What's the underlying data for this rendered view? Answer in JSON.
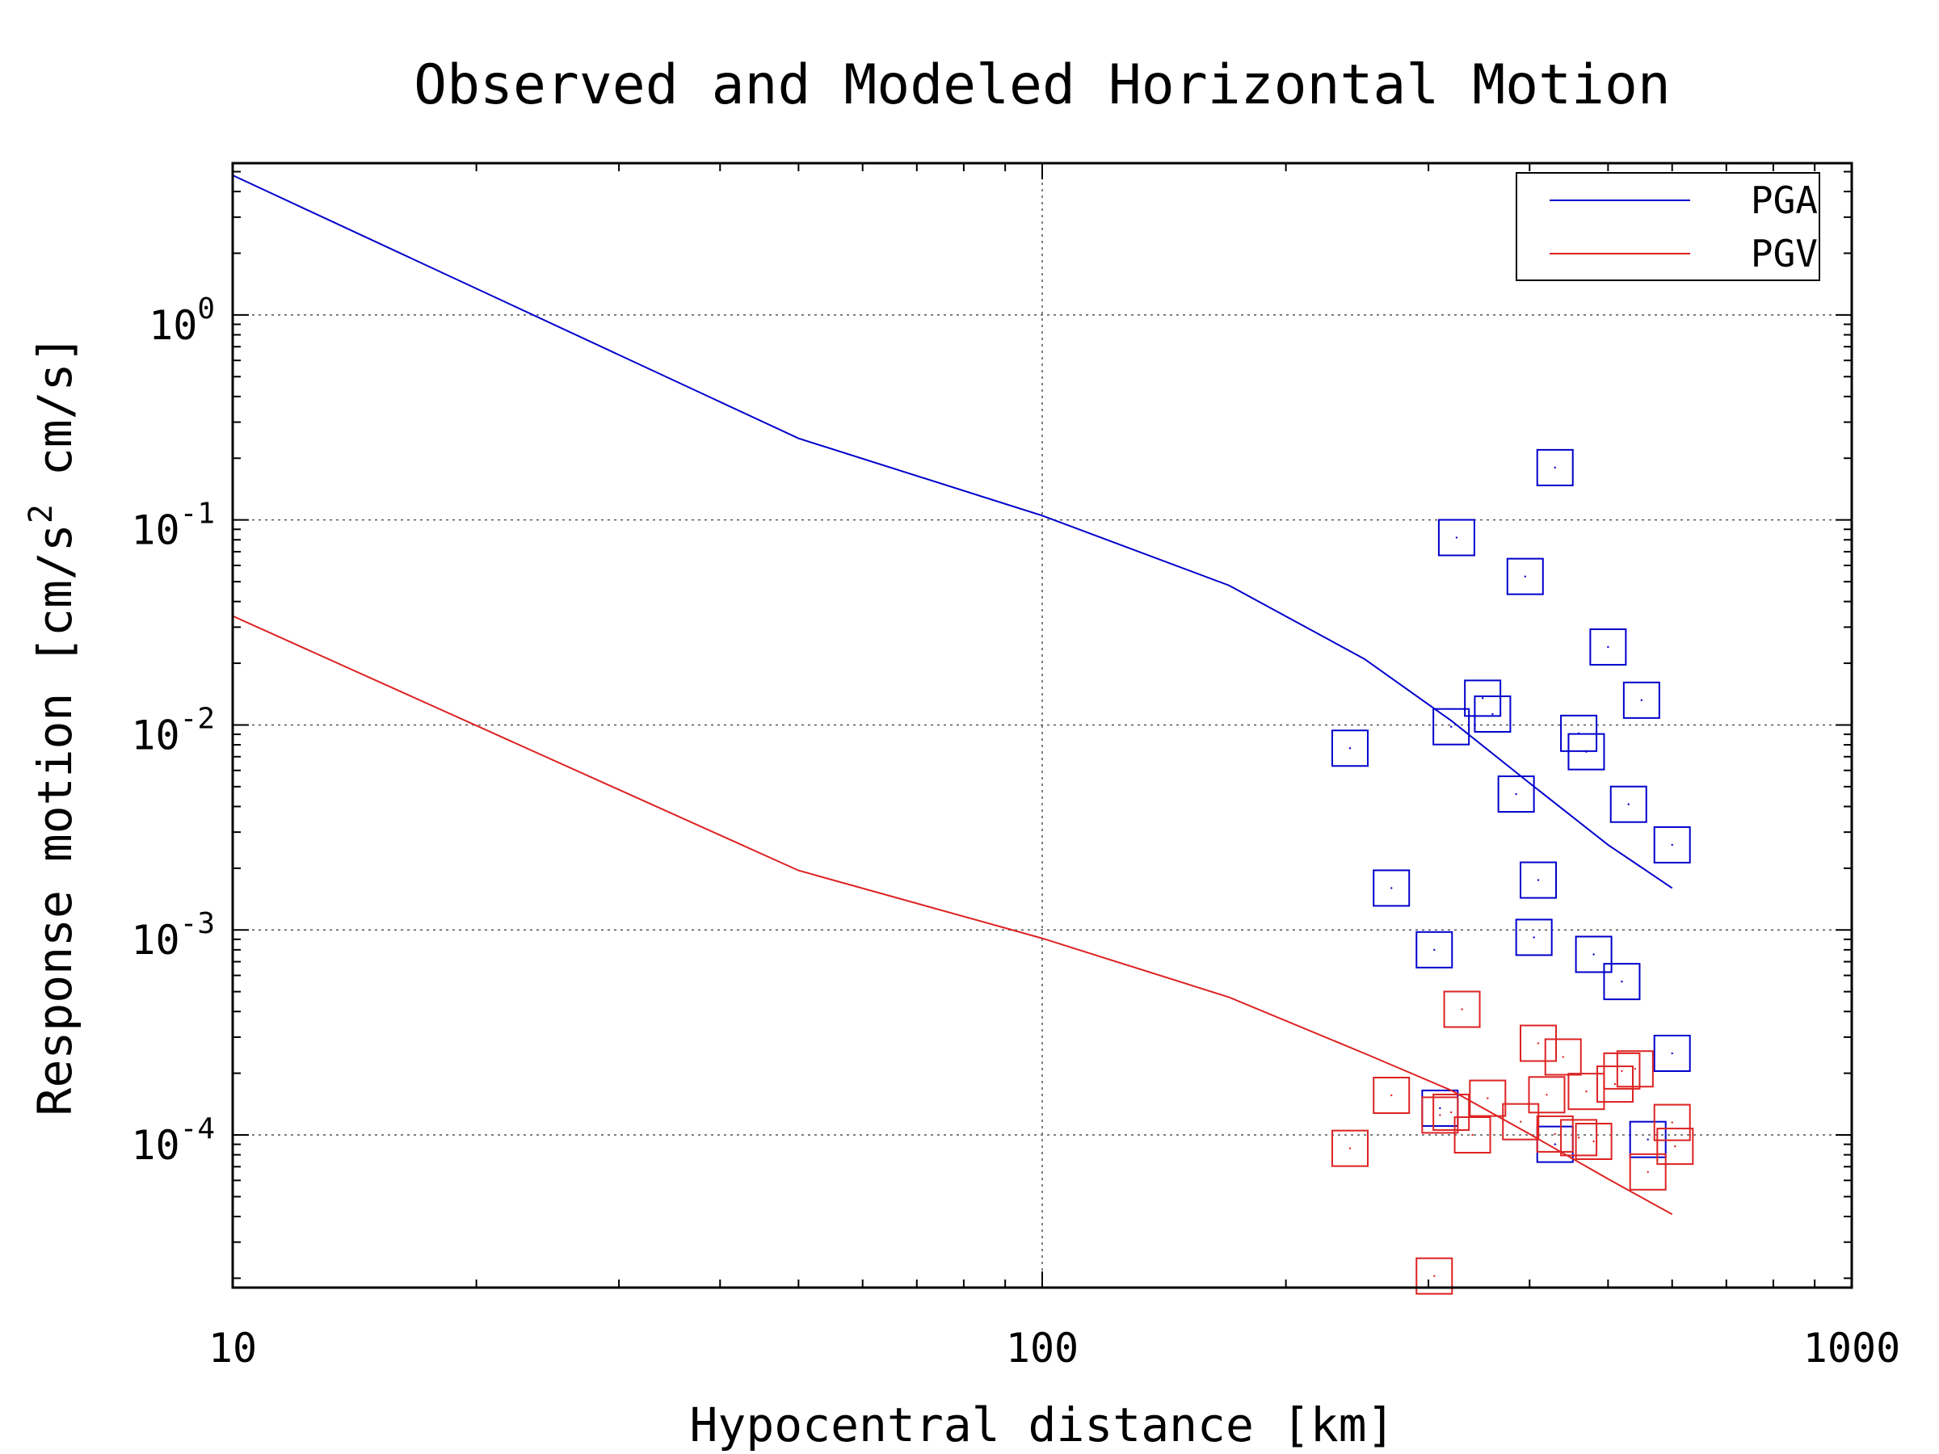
{
  "chart_data": {
    "type": "scatter",
    "title": "Observed and Modeled Horizontal Motion",
    "xlabel": "Hypocentral distance [km]",
    "ylabel": "Response motion [cm/s² cm/s]",
    "xscale": "log",
    "yscale": "log",
    "xlim": [
      10,
      1000
    ],
    "ylim": [
      1.8e-05,
      5.5
    ],
    "x_ticks": [
      10,
      100,
      1000
    ],
    "x_tick_labels": [
      "10",
      "100",
      "1000"
    ],
    "y_ticks": [
      0.0001,
      0.001,
      0.01,
      0.1,
      1
    ],
    "y_tick_labels": [
      {
        "base": "10",
        "exp": "-4"
      },
      {
        "base": "10",
        "exp": "-3"
      },
      {
        "base": "10",
        "exp": "-2"
      },
      {
        "base": "10",
        "exp": "-1"
      },
      {
        "base": "10",
        "exp": "0"
      }
    ],
    "grid": true,
    "legend_position": "top-right",
    "series": [
      {
        "name": "PGA",
        "color": "#0000cc",
        "model": {
          "x": [
            10,
            50,
            100,
            170,
            250,
            320,
            400,
            500,
            600
          ],
          "y": [
            4.8,
            0.25,
            0.105,
            0.048,
            0.021,
            0.0105,
            0.0052,
            0.0026,
            0.0016
          ]
        },
        "observed": {
          "x": [
            240,
            270,
            305,
            310,
            320,
            325,
            350,
            360,
            385,
            395,
            405,
            410,
            430,
            430,
            460,
            470,
            480,
            500,
            520,
            530,
            550,
            560,
            600,
            600
          ],
          "y": [
            0.0077,
            0.0016,
            0.0008,
            0.000135,
            0.0098,
            0.082,
            0.0135,
            0.0113,
            0.0046,
            0.053,
            0.00092,
            0.00175,
            0.18,
            9e-05,
            0.0091,
            0.0074,
            0.00076,
            0.024,
            0.00056,
            0.0041,
            0.0132,
            9.5e-05,
            0.0026,
            0.00025
          ]
        }
      },
      {
        "name": "PGV",
        "color": "#dd2222",
        "model": {
          "x": [
            10,
            50,
            100,
            170,
            250,
            320,
            400,
            500,
            600
          ],
          "y": [
            0.034,
            0.00195,
            0.00091,
            0.00047,
            0.00025,
            0.000165,
            0.000101,
            6.1e-05,
            4.1e-05
          ]
        },
        "observed": {
          "x": [
            240,
            270,
            305,
            310,
            320,
            330,
            340,
            355,
            390,
            410,
            420,
            430,
            440,
            460,
            470,
            480,
            510,
            520,
            540,
            560,
            600,
            605
          ],
          "y": [
            8.6e-05,
            0.000156,
            2.05e-05,
            0.000125,
            0.000129,
            0.00041,
            0.0001,
            0.000151,
            0.000116,
            0.00028,
            0.000157,
            0.000101,
            0.00024,
            9.7e-05,
            0.000163,
            9.3e-05,
            0.000177,
            0.000205,
            0.00021,
            6.6e-05,
            0.000115,
            8.8e-05
          ]
        }
      }
    ]
  }
}
